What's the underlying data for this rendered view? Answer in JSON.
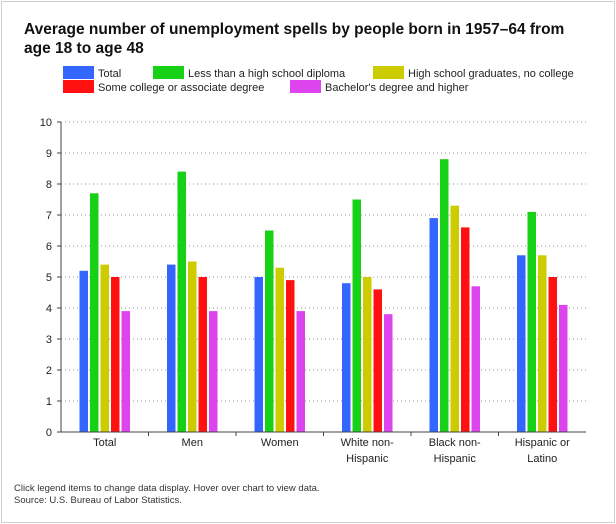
{
  "chart_data": {
    "type": "bar",
    "title": "Average number of unemployment spells by people born in 1957–64 from age 18 to age 48",
    "categories": [
      [
        "Total"
      ],
      [
        "Men"
      ],
      [
        "Women"
      ],
      [
        "White non-",
        "Hispanic"
      ],
      [
        "Black non-",
        "Hispanic"
      ],
      [
        "Hispanic or",
        "Latino"
      ]
    ],
    "series": [
      {
        "name": "Total",
        "color": "#3366ff",
        "values": [
          5.2,
          5.4,
          5.0,
          4.8,
          6.9,
          5.7
        ]
      },
      {
        "name": "Less than a high school diploma",
        "color": "#17d117",
        "values": [
          7.7,
          8.4,
          6.5,
          7.5,
          8.8,
          7.1
        ]
      },
      {
        "name": "High school graduates, no college",
        "color": "#cccc00",
        "values": [
          5.4,
          5.5,
          5.3,
          5.0,
          7.3,
          5.7
        ]
      },
      {
        "name": "Some college or associate degree",
        "color": "#ff1111",
        "values": [
          5.0,
          5.0,
          4.9,
          4.6,
          6.6,
          5.0
        ]
      },
      {
        "name": "Bachelor's degree and higher",
        "color": "#dd44ee",
        "values": [
          3.9,
          3.9,
          3.9,
          3.8,
          4.7,
          4.1
        ]
      }
    ],
    "ylim": [
      0,
      10
    ],
    "yticks": [
      "0",
      "1",
      "2",
      "3",
      "4",
      "5",
      "6",
      "7",
      "8",
      "9",
      "10"
    ],
    "xlabel": "",
    "ylabel": "",
    "grid": true
  },
  "footer": {
    "note": "Click legend items to change data display. Hover over chart to view data.",
    "source": "Source: U.S. Bureau of Labor Statistics."
  }
}
